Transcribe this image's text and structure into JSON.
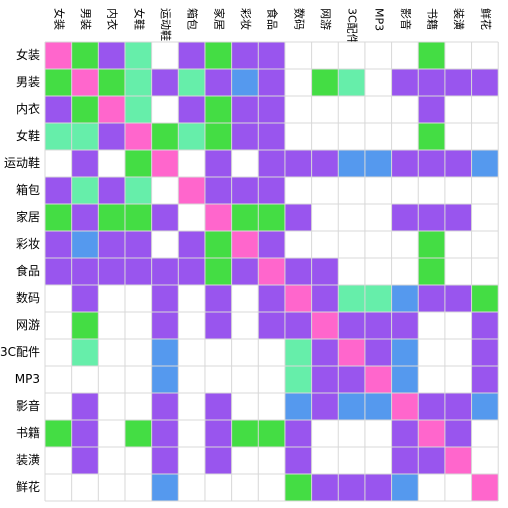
{
  "chart_data": {
    "type": "heatmap",
    "categories": [
      "女装",
      "男装",
      "内衣",
      "女鞋",
      "运动鞋",
      "箱包",
      "家居",
      "彩妆",
      "食品",
      "数码",
      "网游",
      "3C配件",
      "MP3",
      "影音",
      "书籍",
      "装潢",
      "鲜花"
    ],
    "legend": [
      {
        "code": "P",
        "color": "#ff66cc"
      },
      {
        "code": "G",
        "color": "#44dd44"
      },
      {
        "code": "L",
        "color": "#66eeaa"
      },
      {
        "code": "V",
        "color": "#9955ee"
      },
      {
        "code": "B",
        "color": "#5599ee"
      },
      {
        "code": "W",
        "color": "#ffffff"
      }
    ],
    "matrix": [
      "PGVLWVGVVWWWWWGWW",
      "GPGLVLVBVWGLWVVVV",
      "VGPLWVGVVWWWWWVWW",
      "LLVPGLGVVWWWWWGWW",
      "WVWGPWVWVVVBBVVVB",
      "VLVLWPVVVWWWWWWWW",
      "GVGGVWPGGVWWWVVVW",
      "VBVVWVGPVWWWWWGWW",
      "VVVVVVGVPVVWWWGWW",
      "WVWWVWVWVPVLLBVVG",
      "WGWWVWVWVVPVVVWWV",
      "WLWWBWWWWLVPVBWWV",
      "WWWWBWWWWLVVPBWWV",
      "WVWWVWVWWBVBBPVVB",
      "GVWGVWVGGVWWWVPVW",
      "WVWWVWVWWVWWWVVPW",
      "WWWWBWWWWGVVVBWWP"
    ]
  }
}
